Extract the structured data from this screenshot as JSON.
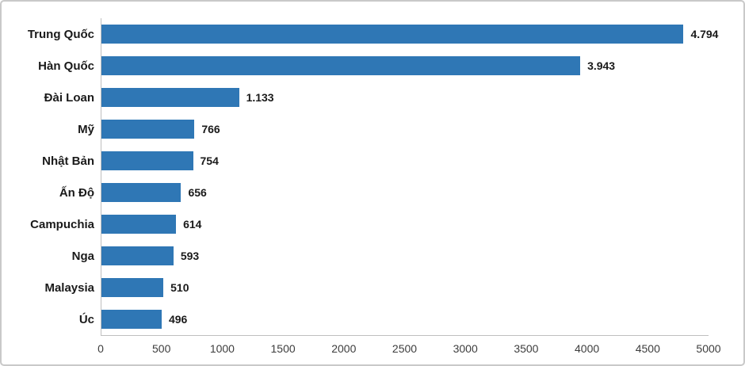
{
  "chart_data": {
    "type": "bar",
    "orientation": "horizontal",
    "title": "",
    "xlabel": "",
    "ylabel": "",
    "categories": [
      "Trung Quốc",
      "Hàn Quốc",
      "Đài Loan",
      "Mỹ",
      "Nhật Bản",
      "Ấn Độ",
      "Campuchia",
      "Nga",
      "Malaysia",
      "Úc"
    ],
    "values": [
      4794,
      3943,
      1133,
      766,
      754,
      656,
      614,
      593,
      510,
      496
    ],
    "value_labels": [
      "4.794",
      "3.943",
      "1.133",
      "766",
      "754",
      "656",
      "614",
      "593",
      "510",
      "496"
    ],
    "xlim": [
      0,
      5000
    ],
    "x_ticks": [
      0,
      500,
      1000,
      1500,
      2000,
      2500,
      3000,
      3500,
      4000,
      4500,
      5000
    ],
    "grid": false,
    "legend": false,
    "bar_color": "#2f77b5",
    "axis_line_color": "#bfbfbf",
    "text_color": "#1a1a1a",
    "tick_color": "#3d3d3d"
  }
}
